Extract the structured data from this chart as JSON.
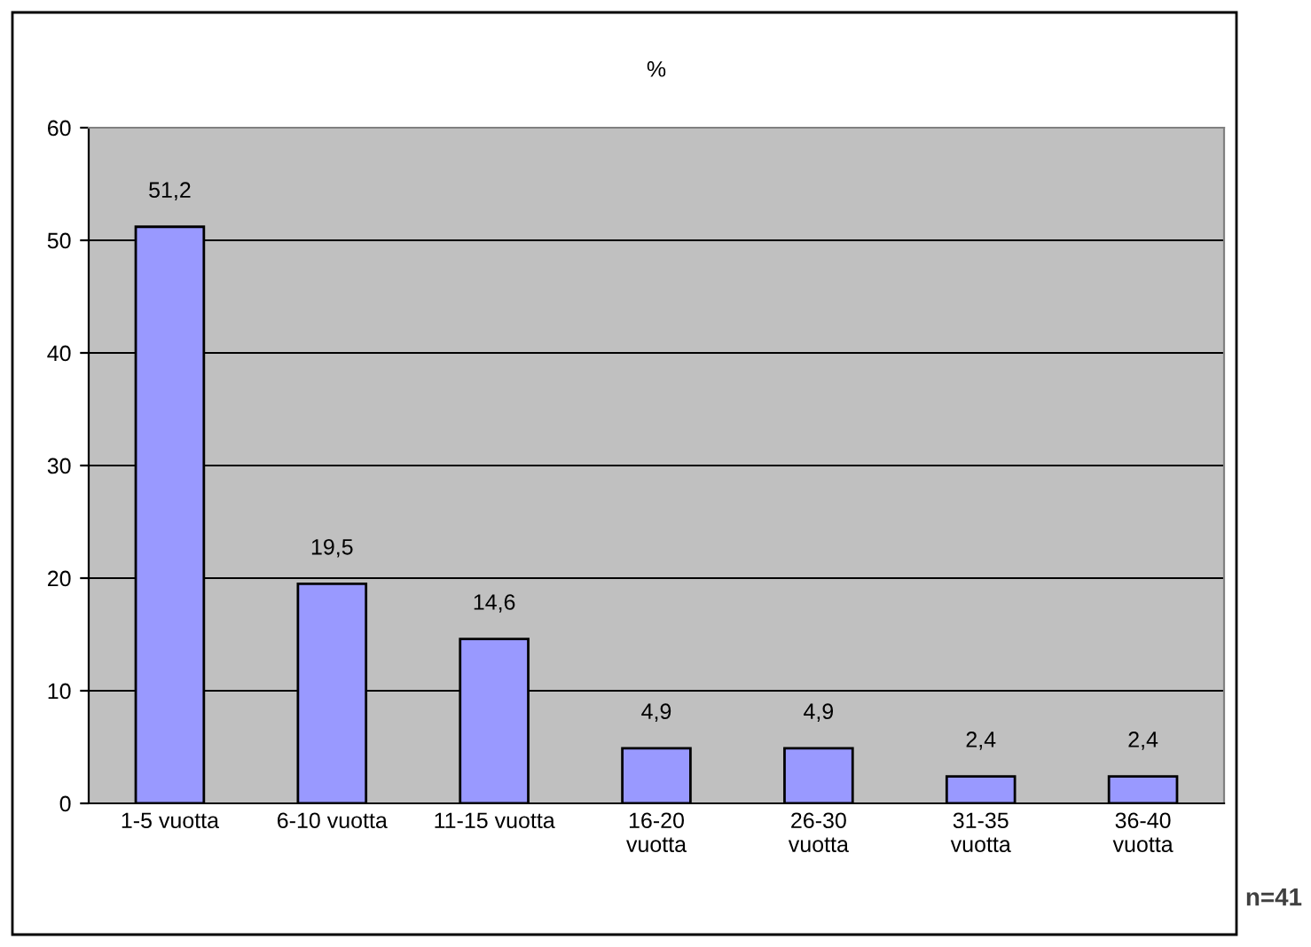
{
  "chart_data": {
    "type": "bar",
    "title": "%",
    "categories": [
      "1-5 vuotta",
      "6-10 vuotta",
      "11-15 vuotta",
      "16-20\nvuotta",
      "26-30\nvuotta",
      "31-35\nvuotta",
      "36-40\nvuotta"
    ],
    "values": [
      51.2,
      19.5,
      14.6,
      4.9,
      4.9,
      2.4,
      2.4
    ],
    "color": "#9999ff",
    "ylim": [
      0,
      60
    ],
    "yticks": [
      0,
      10,
      20,
      30,
      40,
      50,
      60
    ],
    "grid": "y",
    "data_labels": true,
    "value_labels": [
      "51,2",
      "19,5",
      "14,6",
      "4,9",
      "4,9",
      "2,4",
      "2,4"
    ],
    "annotations": [
      "n=41"
    ]
  }
}
